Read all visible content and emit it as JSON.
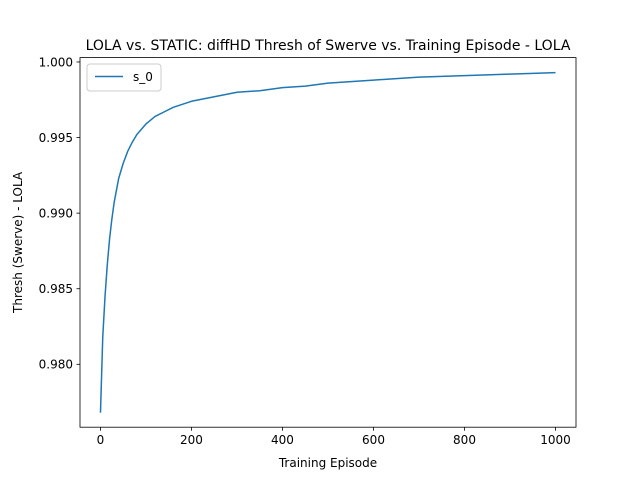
{
  "chart_data": {
    "type": "line",
    "title": "LOLA vs. STATIC: diffHD Thresh of Swerve vs. Training Episode - LOLA",
    "xlabel": "Training Episode",
    "ylabel": "Thresh (Swerve) - LOLA",
    "xlim": [
      -45,
      1045
    ],
    "ylim": [
      0.97584,
      1.00029
    ],
    "xticks": [
      0,
      200,
      400,
      600,
      800,
      1000
    ],
    "xtick_labels": [
      "0",
      "200",
      "400",
      "600",
      "800",
      "1000"
    ],
    "yticks": [
      0.98,
      0.985,
      0.99,
      0.995,
      1.0
    ],
    "ytick_labels": [
      "0.980",
      "0.985",
      "0.990",
      "0.995",
      "1.000"
    ],
    "grid": false,
    "legend_position": "top-left",
    "series": [
      {
        "name": "s_0",
        "color": "#1f77b4",
        "x": [
          0,
          5,
          10,
          15,
          20,
          25,
          30,
          40,
          50,
          60,
          70,
          80,
          100,
          120,
          140,
          160,
          180,
          200,
          250,
          300,
          350,
          400,
          450,
          500,
          600,
          700,
          800,
          900,
          1000
        ],
        "y": [
          0.9768,
          0.9818,
          0.9845,
          0.9866,
          0.9883,
          0.9896,
          0.9907,
          0.9923,
          0.9933,
          0.9941,
          0.9947,
          0.9952,
          0.9959,
          0.9964,
          0.9967,
          0.997,
          0.9972,
          0.9974,
          0.9977,
          0.998,
          0.9981,
          0.9983,
          0.9984,
          0.9986,
          0.9988,
          0.999,
          0.9991,
          0.9992,
          0.9993
        ]
      }
    ]
  }
}
